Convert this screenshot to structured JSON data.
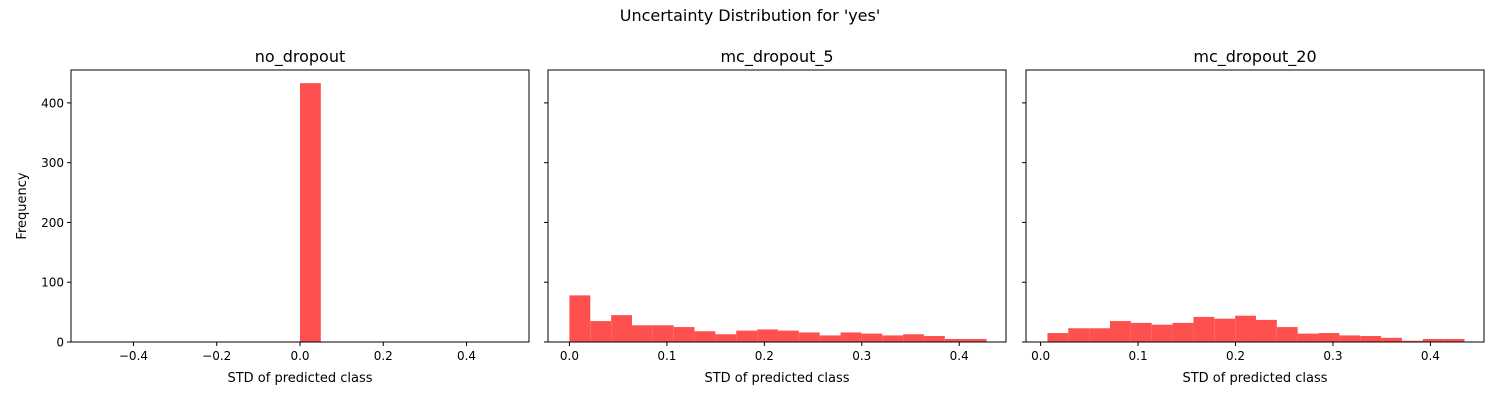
{
  "figure": {
    "suptitle": "Uncertainty Distribution for 'yes'",
    "bar_color": "#ff5050"
  },
  "chart_data": [
    {
      "type": "bar",
      "title": "no_dropout",
      "xlabel": "STD of predicted class",
      "ylabel": "Frequency",
      "xlim": [
        -0.55,
        0.55
      ],
      "ylim": [
        0,
        455
      ],
      "xticks": [
        -0.4,
        -0.2,
        0.0,
        0.2,
        0.4
      ],
      "xtick_labels": [
        "−0.4",
        "−0.2",
        "0.0",
        "0.2",
        "0.4"
      ],
      "yticks": [
        0,
        100,
        200,
        300,
        400
      ],
      "ytick_labels": [
        "0",
        "100",
        "200",
        "300",
        "400"
      ],
      "bins": [
        [
          0.0,
          0.05
        ]
      ],
      "values": [
        433
      ]
    },
    {
      "type": "bar",
      "title": "mc_dropout_5",
      "xlabel": "STD of predicted class",
      "ylabel": "",
      "xlim": [
        -0.022,
        0.448
      ],
      "ylim": [
        0,
        455
      ],
      "xticks": [
        0.0,
        0.1,
        0.2,
        0.3,
        0.4
      ],
      "xtick_labels": [
        "0.0",
        "0.1",
        "0.2",
        "0.3",
        "0.4"
      ],
      "yticks": [
        0,
        100,
        200,
        300,
        400
      ],
      "ytick_labels": [
        "",
        "",
        "",
        "",
        ""
      ],
      "bin_start": 0.0,
      "bin_width": 0.0214,
      "values": [
        78,
        35,
        45,
        28,
        28,
        25,
        18,
        13,
        19,
        21,
        19,
        16,
        11,
        16,
        14,
        11,
        13,
        10,
        5,
        5
      ]
    },
    {
      "type": "bar",
      "title": "mc_dropout_20",
      "xlabel": "STD of predicted class",
      "ylabel": "",
      "xlim": [
        -0.015,
        0.455
      ],
      "ylim": [
        0,
        455
      ],
      "xticks": [
        0.0,
        0.1,
        0.2,
        0.3,
        0.4
      ],
      "xtick_labels": [
        "0.0",
        "0.1",
        "0.2",
        "0.3",
        "0.4"
      ],
      "yticks": [
        0,
        100,
        200,
        300,
        400
      ],
      "ytick_labels": [
        "",
        "",
        "",
        "",
        ""
      ],
      "bin_start": 0.007,
      "bin_width": 0.0214,
      "values": [
        15,
        23,
        23,
        35,
        32,
        29,
        32,
        42,
        39,
        44,
        37,
        25,
        14,
        15,
        11,
        10,
        7,
        2,
        5,
        5
      ]
    }
  ]
}
